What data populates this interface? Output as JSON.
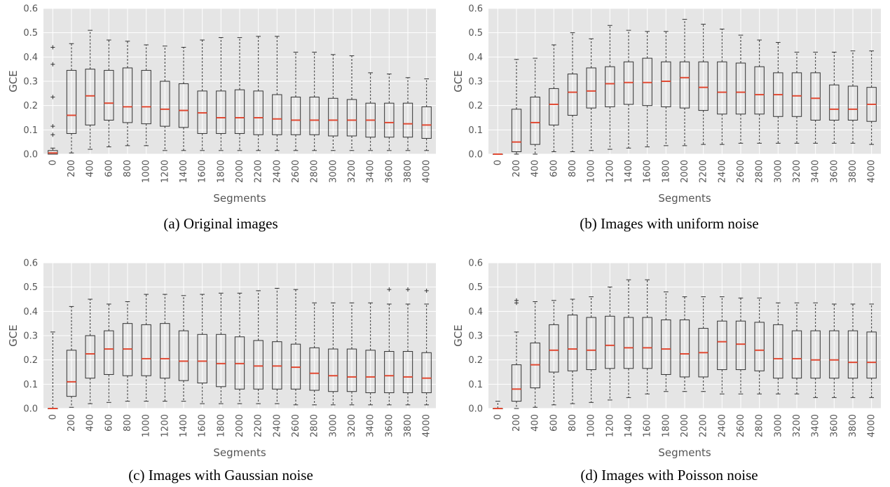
{
  "figure": {
    "captions": [
      "(a) Original images",
      "(b) Images with uniform noise",
      "(c) Images with Gaussian noise",
      "(d) Images with Poisson noise"
    ]
  },
  "colors": {
    "plot_background": "#e5e5e5",
    "grid": "#ffffff",
    "box_edge": "#333333",
    "median": "#e24a33",
    "whisker": "#333333",
    "tick_text": "#555555"
  },
  "chart_data": [
    {
      "type": "box",
      "xlabel": "Segments",
      "ylabel": "GCE",
      "ylim": [
        0,
        0.6
      ],
      "yticks": [
        "0.0",
        "0.1",
        "0.2",
        "0.3",
        "0.4",
        "0.5",
        "0.6"
      ],
      "grid": true,
      "categories": [
        "0",
        "200",
        "400",
        "600",
        "800",
        "1000",
        "1200",
        "1400",
        "1600",
        "1800",
        "2000",
        "2200",
        "2400",
        "2600",
        "2800",
        "3000",
        "3200",
        "3400",
        "3600",
        "3800",
        "4000"
      ],
      "boxes": [
        {
          "min": 0.0,
          "q1": 0.0,
          "median": 0.005,
          "q3": 0.015,
          "max": 0.025,
          "fliers": [
            0.44,
            0.37,
            0.235,
            0.115,
            0.08
          ]
        },
        {
          "min": 0.005,
          "q1": 0.085,
          "median": 0.16,
          "q3": 0.345,
          "max": 0.455,
          "fliers": []
        },
        {
          "min": 0.02,
          "q1": 0.12,
          "median": 0.24,
          "q3": 0.35,
          "max": 0.51,
          "fliers": []
        },
        {
          "min": 0.03,
          "q1": 0.14,
          "median": 0.21,
          "q3": 0.345,
          "max": 0.47,
          "fliers": []
        },
        {
          "min": 0.035,
          "q1": 0.13,
          "median": 0.195,
          "q3": 0.355,
          "max": 0.465,
          "fliers": []
        },
        {
          "min": 0.035,
          "q1": 0.125,
          "median": 0.195,
          "q3": 0.345,
          "max": 0.45,
          "fliers": []
        },
        {
          "min": 0.015,
          "q1": 0.115,
          "median": 0.185,
          "q3": 0.3,
          "max": 0.445,
          "fliers": []
        },
        {
          "min": 0.015,
          "q1": 0.11,
          "median": 0.18,
          "q3": 0.29,
          "max": 0.44,
          "fliers": []
        },
        {
          "min": 0.015,
          "q1": 0.085,
          "median": 0.17,
          "q3": 0.26,
          "max": 0.47,
          "fliers": []
        },
        {
          "min": 0.015,
          "q1": 0.085,
          "median": 0.15,
          "q3": 0.26,
          "max": 0.48,
          "fliers": []
        },
        {
          "min": 0.015,
          "q1": 0.085,
          "median": 0.15,
          "q3": 0.265,
          "max": 0.48,
          "fliers": []
        },
        {
          "min": 0.015,
          "q1": 0.08,
          "median": 0.15,
          "q3": 0.26,
          "max": 0.485,
          "fliers": []
        },
        {
          "min": 0.015,
          "q1": 0.08,
          "median": 0.145,
          "q3": 0.245,
          "max": 0.485,
          "fliers": []
        },
        {
          "min": 0.015,
          "q1": 0.08,
          "median": 0.14,
          "q3": 0.235,
          "max": 0.42,
          "fliers": []
        },
        {
          "min": 0.015,
          "q1": 0.08,
          "median": 0.14,
          "q3": 0.235,
          "max": 0.42,
          "fliers": []
        },
        {
          "min": 0.015,
          "q1": 0.075,
          "median": 0.14,
          "q3": 0.23,
          "max": 0.41,
          "fliers": []
        },
        {
          "min": 0.015,
          "q1": 0.075,
          "median": 0.14,
          "q3": 0.225,
          "max": 0.405,
          "fliers": []
        },
        {
          "min": 0.015,
          "q1": 0.07,
          "median": 0.14,
          "q3": 0.21,
          "max": 0.335,
          "fliers": []
        },
        {
          "min": 0.015,
          "q1": 0.07,
          "median": 0.13,
          "q3": 0.21,
          "max": 0.33,
          "fliers": []
        },
        {
          "min": 0.015,
          "q1": 0.07,
          "median": 0.125,
          "q3": 0.21,
          "max": 0.315,
          "fliers": []
        },
        {
          "min": 0.015,
          "q1": 0.065,
          "median": 0.12,
          "q3": 0.195,
          "max": 0.31,
          "fliers": []
        }
      ]
    },
    {
      "type": "box",
      "xlabel": "Segments",
      "ylabel": "GCE",
      "ylim": [
        0,
        0.6
      ],
      "yticks": [
        "0.0",
        "0.1",
        "0.2",
        "0.3",
        "0.4",
        "0.5",
        "0.6"
      ],
      "grid": true,
      "categories": [
        "0",
        "200",
        "400",
        "600",
        "800",
        "1000",
        "1200",
        "1400",
        "1600",
        "1800",
        "2000",
        "2200",
        "2400",
        "2600",
        "2800",
        "3000",
        "3200",
        "3400",
        "3600",
        "3800",
        "4000"
      ],
      "boxes": [
        {
          "min": 0.0,
          "q1": 0.0,
          "median": 0.0,
          "q3": 0.0,
          "max": 0.0,
          "fliers": []
        },
        {
          "min": 0.0,
          "q1": 0.01,
          "median": 0.05,
          "q3": 0.185,
          "max": 0.39,
          "fliers": []
        },
        {
          "min": 0.0,
          "q1": 0.04,
          "median": 0.13,
          "q3": 0.235,
          "max": 0.395,
          "fliers": []
        },
        {
          "min": 0.01,
          "q1": 0.12,
          "median": 0.205,
          "q3": 0.27,
          "max": 0.45,
          "fliers": []
        },
        {
          "min": 0.01,
          "q1": 0.16,
          "median": 0.255,
          "q3": 0.33,
          "max": 0.5,
          "fliers": []
        },
        {
          "min": 0.015,
          "q1": 0.19,
          "median": 0.26,
          "q3": 0.355,
          "max": 0.475,
          "fliers": []
        },
        {
          "min": 0.02,
          "q1": 0.195,
          "median": 0.29,
          "q3": 0.36,
          "max": 0.53,
          "fliers": []
        },
        {
          "min": 0.025,
          "q1": 0.205,
          "median": 0.295,
          "q3": 0.38,
          "max": 0.51,
          "fliers": []
        },
        {
          "min": 0.03,
          "q1": 0.2,
          "median": 0.295,
          "q3": 0.395,
          "max": 0.505,
          "fliers": []
        },
        {
          "min": 0.035,
          "q1": 0.195,
          "median": 0.3,
          "q3": 0.38,
          "max": 0.505,
          "fliers": []
        },
        {
          "min": 0.035,
          "q1": 0.19,
          "median": 0.315,
          "q3": 0.38,
          "max": 0.555,
          "fliers": []
        },
        {
          "min": 0.04,
          "q1": 0.18,
          "median": 0.275,
          "q3": 0.38,
          "max": 0.535,
          "fliers": []
        },
        {
          "min": 0.04,
          "q1": 0.165,
          "median": 0.255,
          "q3": 0.38,
          "max": 0.515,
          "fliers": []
        },
        {
          "min": 0.045,
          "q1": 0.165,
          "median": 0.255,
          "q3": 0.375,
          "max": 0.49,
          "fliers": []
        },
        {
          "min": 0.045,
          "q1": 0.165,
          "median": 0.245,
          "q3": 0.36,
          "max": 0.47,
          "fliers": []
        },
        {
          "min": 0.045,
          "q1": 0.155,
          "median": 0.245,
          "q3": 0.335,
          "max": 0.46,
          "fliers": []
        },
        {
          "min": 0.045,
          "q1": 0.155,
          "median": 0.24,
          "q3": 0.335,
          "max": 0.42,
          "fliers": []
        },
        {
          "min": 0.045,
          "q1": 0.14,
          "median": 0.23,
          "q3": 0.335,
          "max": 0.42,
          "fliers": []
        },
        {
          "min": 0.045,
          "q1": 0.14,
          "median": 0.185,
          "q3": 0.285,
          "max": 0.42,
          "fliers": []
        },
        {
          "min": 0.045,
          "q1": 0.14,
          "median": 0.185,
          "q3": 0.28,
          "max": 0.425,
          "fliers": []
        },
        {
          "min": 0.04,
          "q1": 0.135,
          "median": 0.205,
          "q3": 0.275,
          "max": 0.425,
          "fliers": []
        }
      ]
    },
    {
      "type": "box",
      "xlabel": "Segments",
      "ylabel": "GCE",
      "ylim": [
        0,
        0.6
      ],
      "yticks": [
        "0.0",
        "0.1",
        "0.2",
        "0.3",
        "0.4",
        "0.5",
        "0.6"
      ],
      "grid": true,
      "categories": [
        "0",
        "200",
        "400",
        "600",
        "800",
        "1000",
        "1200",
        "1400",
        "1600",
        "1800",
        "2000",
        "2200",
        "2400",
        "2600",
        "2800",
        "3000",
        "3200",
        "3400",
        "3600",
        "3800",
        "4000"
      ],
      "boxes": [
        {
          "min": 0.0,
          "q1": 0.0,
          "median": 0.0,
          "q3": 0.0,
          "max": 0.315,
          "fliers": []
        },
        {
          "min": 0.005,
          "q1": 0.05,
          "median": 0.11,
          "q3": 0.24,
          "max": 0.42,
          "fliers": []
        },
        {
          "min": 0.02,
          "q1": 0.125,
          "median": 0.225,
          "q3": 0.3,
          "max": 0.45,
          "fliers": []
        },
        {
          "min": 0.025,
          "q1": 0.14,
          "median": 0.245,
          "q3": 0.32,
          "max": 0.43,
          "fliers": []
        },
        {
          "min": 0.03,
          "q1": 0.135,
          "median": 0.245,
          "q3": 0.35,
          "max": 0.44,
          "fliers": []
        },
        {
          "min": 0.03,
          "q1": 0.135,
          "median": 0.205,
          "q3": 0.345,
          "max": 0.47,
          "fliers": []
        },
        {
          "min": 0.03,
          "q1": 0.125,
          "median": 0.205,
          "q3": 0.35,
          "max": 0.47,
          "fliers": []
        },
        {
          "min": 0.03,
          "q1": 0.115,
          "median": 0.195,
          "q3": 0.32,
          "max": 0.465,
          "fliers": []
        },
        {
          "min": 0.02,
          "q1": 0.105,
          "median": 0.195,
          "q3": 0.305,
          "max": 0.47,
          "fliers": []
        },
        {
          "min": 0.02,
          "q1": 0.09,
          "median": 0.185,
          "q3": 0.305,
          "max": 0.475,
          "fliers": []
        },
        {
          "min": 0.02,
          "q1": 0.08,
          "median": 0.185,
          "q3": 0.295,
          "max": 0.475,
          "fliers": []
        },
        {
          "min": 0.02,
          "q1": 0.08,
          "median": 0.175,
          "q3": 0.28,
          "max": 0.485,
          "fliers": []
        },
        {
          "min": 0.02,
          "q1": 0.08,
          "median": 0.175,
          "q3": 0.275,
          "max": 0.495,
          "fliers": []
        },
        {
          "min": 0.015,
          "q1": 0.08,
          "median": 0.17,
          "q3": 0.265,
          "max": 0.49,
          "fliers": []
        },
        {
          "min": 0.015,
          "q1": 0.075,
          "median": 0.145,
          "q3": 0.25,
          "max": 0.435,
          "fliers": []
        },
        {
          "min": 0.015,
          "q1": 0.07,
          "median": 0.135,
          "q3": 0.245,
          "max": 0.435,
          "fliers": []
        },
        {
          "min": 0.015,
          "q1": 0.07,
          "median": 0.13,
          "q3": 0.245,
          "max": 0.435,
          "fliers": []
        },
        {
          "min": 0.015,
          "q1": 0.065,
          "median": 0.13,
          "q3": 0.24,
          "max": 0.435,
          "fliers": []
        },
        {
          "min": 0.015,
          "q1": 0.065,
          "median": 0.135,
          "q3": 0.235,
          "max": 0.43,
          "fliers": [
            0.49
          ]
        },
        {
          "min": 0.015,
          "q1": 0.065,
          "median": 0.13,
          "q3": 0.235,
          "max": 0.43,
          "fliers": [
            0.49
          ]
        },
        {
          "min": 0.015,
          "q1": 0.065,
          "median": 0.125,
          "q3": 0.23,
          "max": 0.43,
          "fliers": [
            0.485
          ]
        }
      ]
    },
    {
      "type": "box",
      "xlabel": "Segments",
      "ylabel": "GCE",
      "ylim": [
        0,
        0.6
      ],
      "yticks": [
        "0.0",
        "0.1",
        "0.2",
        "0.3",
        "0.4",
        "0.5",
        "0.6"
      ],
      "grid": true,
      "categories": [
        "0",
        "200",
        "400",
        "600",
        "800",
        "1000",
        "1200",
        "1400",
        "1600",
        "1800",
        "2000",
        "2200",
        "2400",
        "2600",
        "2800",
        "3000",
        "3200",
        "3400",
        "3600",
        "3800",
        "4000"
      ],
      "boxes": [
        {
          "min": 0.0,
          "q1": 0.0,
          "median": 0.0,
          "q3": 0.0,
          "max": 0.03,
          "fliers": []
        },
        {
          "min": 0.0,
          "q1": 0.03,
          "median": 0.08,
          "q3": 0.18,
          "max": 0.315,
          "fliers": [
            0.445,
            0.435
          ]
        },
        {
          "min": 0.005,
          "q1": 0.085,
          "median": 0.18,
          "q3": 0.27,
          "max": 0.44,
          "fliers": []
        },
        {
          "min": 0.015,
          "q1": 0.15,
          "median": 0.24,
          "q3": 0.345,
          "max": 0.445,
          "fliers": []
        },
        {
          "min": 0.02,
          "q1": 0.155,
          "median": 0.245,
          "q3": 0.385,
          "max": 0.45,
          "fliers": []
        },
        {
          "min": 0.025,
          "q1": 0.16,
          "median": 0.24,
          "q3": 0.375,
          "max": 0.46,
          "fliers": []
        },
        {
          "min": 0.035,
          "q1": 0.165,
          "median": 0.26,
          "q3": 0.38,
          "max": 0.5,
          "fliers": []
        },
        {
          "min": 0.045,
          "q1": 0.165,
          "median": 0.25,
          "q3": 0.375,
          "max": 0.53,
          "fliers": []
        },
        {
          "min": 0.06,
          "q1": 0.165,
          "median": 0.25,
          "q3": 0.375,
          "max": 0.53,
          "fliers": []
        },
        {
          "min": 0.07,
          "q1": 0.14,
          "median": 0.245,
          "q3": 0.365,
          "max": 0.48,
          "fliers": []
        },
        {
          "min": 0.07,
          "q1": 0.13,
          "median": 0.225,
          "q3": 0.365,
          "max": 0.46,
          "fliers": []
        },
        {
          "min": 0.07,
          "q1": 0.13,
          "median": 0.23,
          "q3": 0.33,
          "max": 0.46,
          "fliers": []
        },
        {
          "min": 0.06,
          "q1": 0.16,
          "median": 0.275,
          "q3": 0.36,
          "max": 0.46,
          "fliers": []
        },
        {
          "min": 0.06,
          "q1": 0.16,
          "median": 0.265,
          "q3": 0.36,
          "max": 0.455,
          "fliers": []
        },
        {
          "min": 0.06,
          "q1": 0.155,
          "median": 0.24,
          "q3": 0.355,
          "max": 0.455,
          "fliers": []
        },
        {
          "min": 0.06,
          "q1": 0.125,
          "median": 0.205,
          "q3": 0.345,
          "max": 0.435,
          "fliers": []
        },
        {
          "min": 0.06,
          "q1": 0.125,
          "median": 0.205,
          "q3": 0.32,
          "max": 0.435,
          "fliers": []
        },
        {
          "min": 0.045,
          "q1": 0.125,
          "median": 0.2,
          "q3": 0.32,
          "max": 0.435,
          "fliers": []
        },
        {
          "min": 0.045,
          "q1": 0.125,
          "median": 0.2,
          "q3": 0.32,
          "max": 0.43,
          "fliers": []
        },
        {
          "min": 0.045,
          "q1": 0.125,
          "median": 0.19,
          "q3": 0.32,
          "max": 0.43,
          "fliers": []
        },
        {
          "min": 0.045,
          "q1": 0.125,
          "median": 0.19,
          "q3": 0.315,
          "max": 0.43,
          "fliers": []
        }
      ]
    }
  ]
}
